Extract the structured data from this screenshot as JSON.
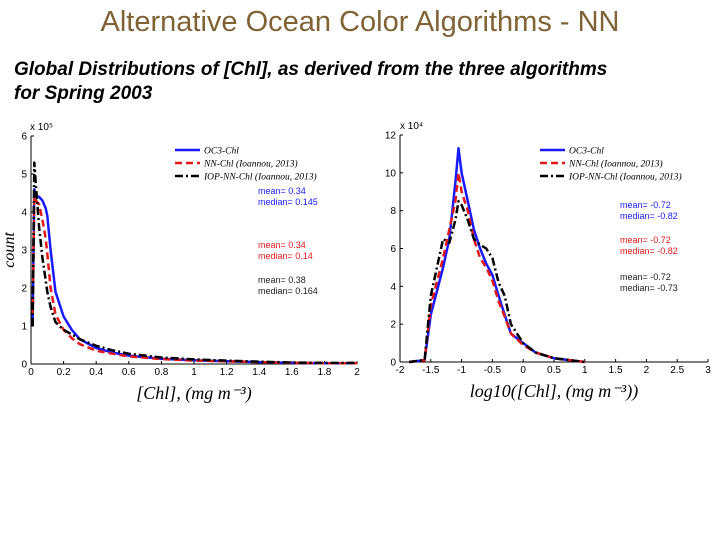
{
  "title": "Alternative Ocean Color Algorithms - NN",
  "subtitle": "Global Distributions of [Chl], as derived from the three algorithms for Spring 2003",
  "colors": {
    "title": "#7f6335",
    "oc3": "#1a1aff",
    "nn": "#e01a1a",
    "iop": "#000000"
  },
  "chart_data": [
    {
      "type": "line",
      "xlabel": "[Chl], (mg m⁻³)",
      "ylabel": "count",
      "y_multiplier": "x 10⁵",
      "xlim": [
        0,
        2
      ],
      "ylim": [
        0,
        6
      ],
      "xticks": [
        "0",
        "0.2",
        "0.4",
        "0.6",
        "0.8",
        "1",
        "1.2",
        "1.4",
        "1.6",
        "1.8",
        "2"
      ],
      "yticks": [
        "0",
        "1",
        "2",
        "3",
        "4",
        "5",
        "6"
      ],
      "legend": [
        "OC3-Chl",
        "NN-Chl (Ioannou, 2013)",
        "IOP-NN-Chl (Ioannou, 2013)"
      ],
      "stats": [
        {
          "mean": "mean= 0.34",
          "median": "median= 0.145"
        },
        {
          "mean": "mean= 0.34",
          "median": "median= 0.14"
        },
        {
          "mean": "mean= 0.38",
          "median": "median= 0.164"
        }
      ],
      "series": [
        {
          "name": "OC3-Chl",
          "x": [
            0.01,
            0.02,
            0.03,
            0.05,
            0.07,
            0.09,
            0.1,
            0.12,
            0.15,
            0.2,
            0.25,
            0.3,
            0.4,
            0.5,
            0.6,
            0.8,
            1.0,
            1.2,
            1.4,
            1.6,
            1.8,
            2.0
          ],
          "y": [
            1.0,
            4.6,
            4.4,
            4.4,
            4.3,
            4.1,
            3.9,
            3.0,
            1.9,
            1.25,
            0.9,
            0.65,
            0.42,
            0.3,
            0.22,
            0.14,
            0.1,
            0.07,
            0.05,
            0.03,
            0.02,
            0.02
          ]
        },
        {
          "name": "NN-Chl (Ioannou, 2013)",
          "x": [
            0.01,
            0.02,
            0.03,
            0.05,
            0.07,
            0.09,
            0.1,
            0.12,
            0.15,
            0.2,
            0.25,
            0.3,
            0.4,
            0.5,
            0.6,
            0.8,
            1.0,
            1.2,
            1.4,
            1.6,
            1.8,
            2.0
          ],
          "y": [
            1.0,
            4.4,
            4.3,
            4.2,
            3.8,
            3.3,
            2.9,
            2.0,
            1.3,
            0.9,
            0.68,
            0.52,
            0.35,
            0.27,
            0.2,
            0.13,
            0.09,
            0.07,
            0.05,
            0.03,
            0.02,
            0.02
          ]
        },
        {
          "name": "IOP-NN-Chl (Ioannou, 2013)",
          "x": [
            0.01,
            0.02,
            0.03,
            0.05,
            0.07,
            0.09,
            0.1,
            0.12,
            0.15,
            0.2,
            0.25,
            0.3,
            0.4,
            0.5,
            0.6,
            0.8,
            1.0,
            1.2,
            1.4,
            1.6,
            1.8,
            2.0
          ],
          "y": [
            1.0,
            5.3,
            4.7,
            3.6,
            2.8,
            2.2,
            1.9,
            1.5,
            1.1,
            0.9,
            0.78,
            0.65,
            0.48,
            0.36,
            0.27,
            0.17,
            0.12,
            0.09,
            0.06,
            0.04,
            0.03,
            0.03
          ]
        }
      ]
    },
    {
      "type": "line",
      "xlabel": "log10([Chl], (mg m⁻³))",
      "y_multiplier": "x 10⁴",
      "xlim": [
        -2,
        3
      ],
      "ylim": [
        0,
        12
      ],
      "xticks": [
        "-2",
        "-1.5",
        "-1",
        "-0.5",
        "0",
        "0.5",
        "1",
        "1.5",
        "2",
        "2.5",
        "3"
      ],
      "yticks": [
        "0",
        "2",
        "4",
        "6",
        "8",
        "10",
        "12"
      ],
      "legend": [
        "OC3-Chl",
        "NN-Chl (Ioannou, 2013)",
        "IOP-NN-Chl (Ioannou, 2013)"
      ],
      "stats": [
        {
          "mean": "mean= -0.72",
          "median": "median= -0.82"
        },
        {
          "mean": "mean= -0.72",
          "median": "median= -0.82"
        },
        {
          "mean": "mean= -0.72",
          "median": "median= -0.73"
        }
      ],
      "series": [
        {
          "name": "OC3-Chl",
          "x": [
            -1.85,
            -1.6,
            -1.5,
            -1.3,
            -1.2,
            -1.1,
            -1.05,
            -1.0,
            -0.9,
            -0.8,
            -0.7,
            -0.6,
            -0.5,
            -0.4,
            -0.3,
            -0.2,
            0.0,
            0.2,
            0.5,
            1.0
          ],
          "y": [
            0,
            0.1,
            2.5,
            5.0,
            6.5,
            9.5,
            11.3,
            10.0,
            8.5,
            7.0,
            6.0,
            5.2,
            4.6,
            3.5,
            2.5,
            1.5,
            1.0,
            0.5,
            0.2,
            0
          ]
        },
        {
          "name": "NN-Chl (Ioannou, 2013)",
          "x": [
            -1.85,
            -1.6,
            -1.5,
            -1.3,
            -1.2,
            -1.1,
            -1.05,
            -1.0,
            -0.9,
            -0.8,
            -0.7,
            -0.6,
            -0.5,
            -0.4,
            -0.3,
            -0.2,
            0.0,
            0.2,
            0.5,
            1.0
          ],
          "y": [
            0,
            0.1,
            3.0,
            5.5,
            7.0,
            8.5,
            10.0,
            9.0,
            8.0,
            6.5,
            5.5,
            5.0,
            4.3,
            3.2,
            2.4,
            1.5,
            0.9,
            0.5,
            0.2,
            0
          ]
        },
        {
          "name": "IOP-NN-Chl (Ioannou, 2013)",
          "x": [
            -1.85,
            -1.6,
            -1.5,
            -1.3,
            -1.2,
            -1.1,
            -1.05,
            -1.0,
            -0.9,
            -0.8,
            -0.7,
            -0.6,
            -0.5,
            -0.4,
            -0.3,
            -0.2,
            0.0,
            0.2,
            0.5,
            1.0
          ],
          "y": [
            0,
            0.1,
            3.5,
            6.5,
            6.3,
            7.5,
            8.5,
            8.3,
            7.5,
            6.5,
            6.2,
            6.0,
            5.5,
            4.2,
            3.5,
            2.0,
            1.0,
            0.5,
            0.2,
            0
          ]
        }
      ]
    }
  ]
}
